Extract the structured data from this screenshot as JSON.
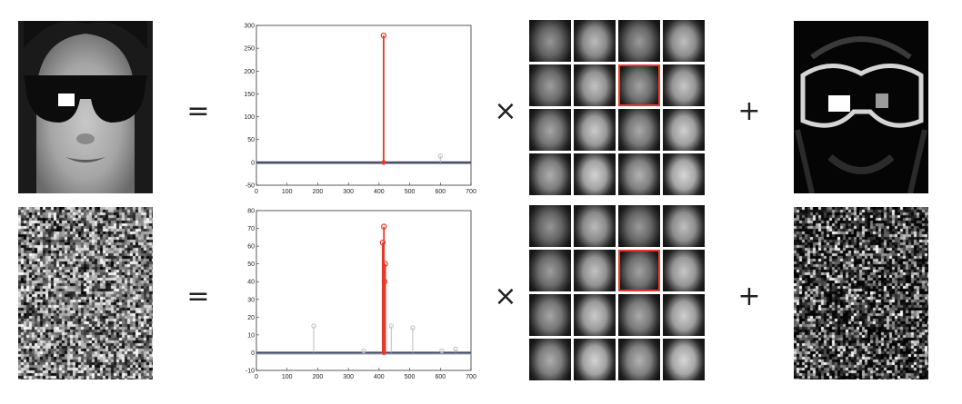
{
  "operators": {
    "equals": "=",
    "times": "×",
    "plus": "+"
  },
  "colors": {
    "coefficient": "#e43a2c",
    "minor": "#bdbdbd",
    "selection": "#e43a2c"
  },
  "dictionary": {
    "rows": 4,
    "cols": 4,
    "selected_index": 6
  },
  "chart_data": [
    {
      "type": "stem",
      "xlim": [
        0,
        700
      ],
      "ylim": [
        -50,
        300
      ],
      "x_ticks": [
        0,
        100,
        200,
        300,
        400,
        500,
        600,
        700
      ],
      "y_ticks": [
        -50,
        0,
        50,
        100,
        150,
        200,
        250,
        300
      ],
      "highlight_stems": [
        {
          "x": 415,
          "y": 278
        }
      ],
      "minor_stems": [
        {
          "x": 600,
          "y": 14
        }
      ]
    },
    {
      "type": "stem",
      "xlim": [
        0,
        700
      ],
      "ylim": [
        -10,
        80
      ],
      "x_ticks": [
        0,
        100,
        200,
        300,
        400,
        500,
        600,
        700
      ],
      "y_ticks": [
        -10,
        0,
        10,
        20,
        30,
        40,
        50,
        60,
        70,
        80
      ],
      "highlight_stems": [
        {
          "x": 416,
          "y": 71
        },
        {
          "x": 412,
          "y": 62
        },
        {
          "x": 420,
          "y": 50
        },
        {
          "x": 418,
          "y": 40
        }
      ],
      "minor_stems": [
        {
          "x": 187,
          "y": 15
        },
        {
          "x": 440,
          "y": 15
        },
        {
          "x": 510,
          "y": 14
        },
        {
          "x": 650,
          "y": 2
        },
        {
          "x": 605,
          "y": 1
        },
        {
          "x": 350,
          "y": 1
        }
      ]
    }
  ]
}
